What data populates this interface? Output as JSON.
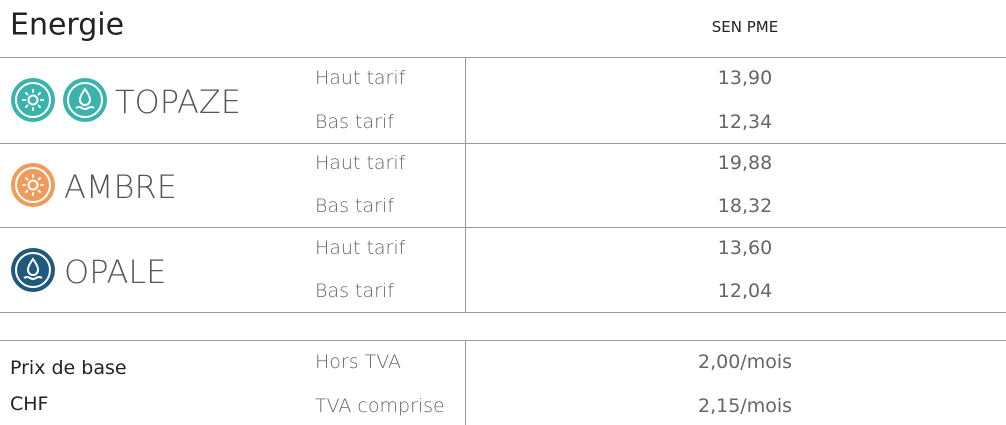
{
  "header": {
    "title": "Energie",
    "column": "SEN PME"
  },
  "products": [
    {
      "name": "TOPAZE",
      "rows": [
        {
          "label": "Haut tarif",
          "value": "13,90"
        },
        {
          "label": "Bas tarif",
          "value": "12,34"
        }
      ]
    },
    {
      "name": "AMBRE",
      "rows": [
        {
          "label": "Haut tarif",
          "value": "19,88"
        },
        {
          "label": "Bas tarif",
          "value": "18,32"
        }
      ]
    },
    {
      "name": "OPALE",
      "rows": [
        {
          "label": "Haut tarif",
          "value": "13,60"
        },
        {
          "label": "Bas tarif",
          "value": "12,04"
        }
      ]
    }
  ],
  "base": {
    "label": [
      "Prix de base",
      "CHF"
    ],
    "rows": [
      {
        "label": "Hors TVA",
        "value": "2,00/mois"
      },
      {
        "label": "TVA comprise",
        "value": "2,15/mois"
      }
    ]
  }
}
